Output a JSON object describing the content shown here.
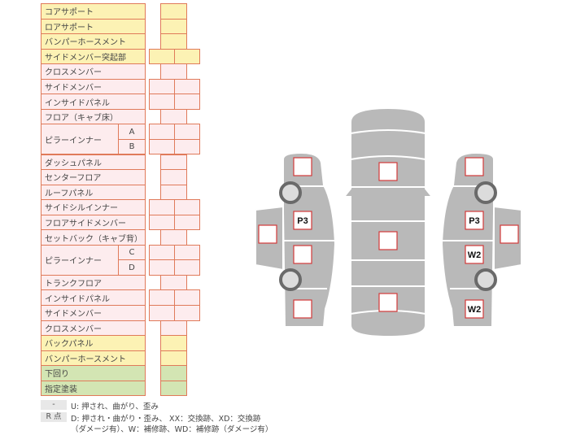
{
  "colors": {
    "yellow": "#fcf2b4",
    "pink": "#fdecee",
    "green": "#d3e5b3",
    "border": "#e07a5a",
    "body": "#b9b9b9",
    "box_border": "#d23a3a"
  },
  "rows": [
    {
      "label": "コアサポート",
      "color": "yellow",
      "cells": 1
    },
    {
      "label": "ロアサポート",
      "color": "yellow",
      "cells": 1
    },
    {
      "label": "バンパーホースメント",
      "color": "yellow",
      "cells": 1
    },
    {
      "label": "サイドメンバー突起部",
      "color": "yellow",
      "cells": 2
    },
    {
      "label": "クロスメンバー",
      "color": "pink",
      "cells": 1
    },
    {
      "label": "サイドメンバー",
      "color": "pink",
      "cells": 2
    },
    {
      "label": "インサイドパネル",
      "color": "pink",
      "cells": 2
    },
    {
      "label": "フロア（キャブ床）",
      "color": "pink",
      "cells": 1
    },
    {
      "label": "ピラーインナー",
      "color": "pink",
      "cells": 2,
      "subs": [
        "A",
        "B"
      ]
    },
    {
      "label": "ダッシュパネル",
      "color": "pink",
      "cells": 1
    },
    {
      "label": "センターフロア",
      "color": "pink",
      "cells": 1
    },
    {
      "label": "ルーフパネル",
      "color": "pink",
      "cells": 1
    },
    {
      "label": "サイドシルインナー",
      "color": "pink",
      "cells": 2
    },
    {
      "label": "フロアサイドメンバー",
      "color": "pink",
      "cells": 2
    },
    {
      "label": "セットバック（キャブ背）",
      "color": "pink",
      "cells": 1
    },
    {
      "label": "ピラーインナー",
      "color": "pink",
      "cells": 2,
      "subs": [
        "C",
        "D"
      ]
    },
    {
      "label": "トランクフロア",
      "color": "pink",
      "cells": 1
    },
    {
      "label": "インサイドパネル",
      "color": "pink",
      "cells": 2
    },
    {
      "label": "サイドメンバー",
      "color": "pink",
      "cells": 2
    },
    {
      "label": "クロスメンバー",
      "color": "pink",
      "cells": 1
    },
    {
      "label": "バックパネル",
      "color": "yellow",
      "cells": 1
    },
    {
      "label": "バンパーホースメント",
      "color": "yellow",
      "cells": 1
    },
    {
      "label": "下回り",
      "color": "green",
      "cells": 1
    },
    {
      "label": "指定塗装",
      "color": "green",
      "cells": 1
    }
  ],
  "legend": [
    {
      "key": "-",
      "text": "U: 押され、曲がり、歪み"
    },
    {
      "key": "R 点",
      "text": "D: 押され・曲がり・歪み、 XX：交換跡、XD：交換跡",
      "text2": "（ダメージ有）、W：補修跡、WD：補修跡（ダメージ有）"
    }
  ],
  "diagram": {
    "left_side": [
      "",
      "P3",
      "",
      "",
      ""
    ],
    "center": [
      "",
      "",
      ""
    ],
    "right_side": [
      "",
      "P3",
      "W2",
      "W2",
      ""
    ]
  }
}
